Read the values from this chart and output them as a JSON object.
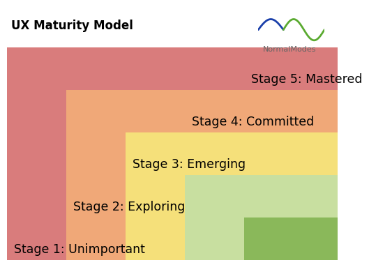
{
  "title": "UX Maturity Model",
  "title_fontsize": 12,
  "title_fontweight": "bold",
  "stages": [
    {
      "label": "Stage 1: Unimportant",
      "color": "#d97c7c"
    },
    {
      "label": "Stage 2: Exploring",
      "color": "#f0a878"
    },
    {
      "label": "Stage 3: Emerging",
      "color": "#f5e07a"
    },
    {
      "label": "Stage 4: Committed",
      "color": "#c8dfa0"
    },
    {
      "label": "Stage 5: Mastered",
      "color": "#8ab85a"
    }
  ],
  "label_fontsize": 12.5,
  "bg_color": "#ffffff",
  "logo_blue_color": "#1a3faa",
  "logo_green_color": "#5aaa30",
  "logo_text": "NormalModes",
  "logo_text_color": "#666666",
  "logo_text_fontsize": 8
}
